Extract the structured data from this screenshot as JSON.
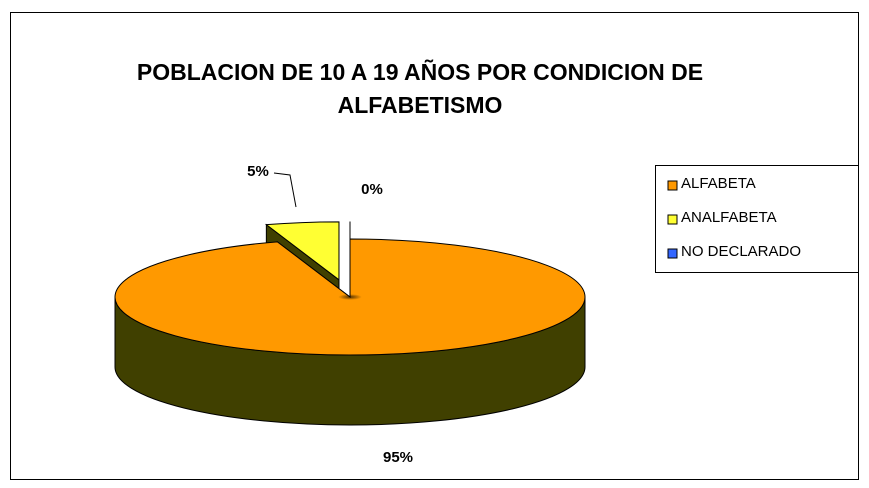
{
  "chart_data": {
    "type": "pie3d",
    "title": "POBLACION DE 10 A 19 AÑOS POR CONDICION DE ALFABETISMO",
    "categories": [
      "ALFABETA",
      "ANALFABETA",
      "NO DECLARADO"
    ],
    "values": [
      95,
      5,
      0
    ],
    "value_labels": [
      "95%",
      "5%",
      "0%"
    ],
    "colors": [
      "#ff9900",
      "#ffff33",
      "#3366ff"
    ],
    "legend": "right"
  }
}
